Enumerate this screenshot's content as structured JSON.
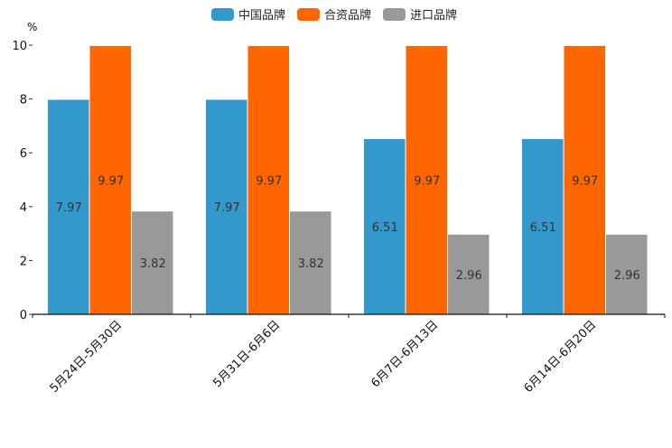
{
  "chart_data": {
    "type": "bar",
    "title": "",
    "ylabel": "%",
    "xlabel": "",
    "ylim": [
      0,
      10
    ],
    "yticks": [
      0,
      2,
      4,
      6,
      8,
      10
    ],
    "categories": [
      "5月24日-5月30日",
      "5月31日-6月6日",
      "6月7日-6月13日",
      "6月14日-6月20日"
    ],
    "series": [
      {
        "name": "中国品牌",
        "color": "#3399cc",
        "values": [
          7.97,
          7.97,
          6.51,
          6.51
        ]
      },
      {
        "name": "合资品牌",
        "color": "#ff6600",
        "values": [
          9.97,
          9.97,
          9.97,
          9.97
        ]
      },
      {
        "name": "进口品牌",
        "color": "#999999",
        "values": [
          3.82,
          3.82,
          2.96,
          2.96
        ]
      }
    ],
    "legend_position": "top-center",
    "grid": false
  }
}
